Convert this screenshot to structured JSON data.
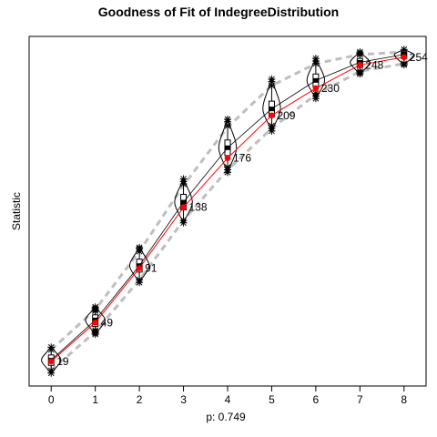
{
  "chart_data": {
    "type": "line",
    "title": "Goodness of Fit of IndegreeDistribution",
    "xlabel": "p: 0.749",
    "ylabel": "Statistic",
    "x": [
      0,
      1,
      2,
      3,
      4,
      5,
      6,
      7,
      8
    ],
    "xlim": [
      -0.5,
      8.5
    ],
    "ylim": [
      0,
      270
    ],
    "grid": false,
    "y_ticks_shown": false,
    "series": [
      {
        "role": "observed",
        "color": "#ff0000",
        "values": [
          19,
          49,
          91,
          138,
          176,
          209,
          230,
          248,
          254
        ],
        "labels": [
          "19",
          "49",
          "91",
          "138",
          "176",
          "209",
          "230",
          "248",
          "254"
        ]
      },
      {
        "role": "simulated-mean",
        "color": "#000000",
        "values": [
          20,
          51,
          93,
          142,
          184,
          214,
          236,
          250,
          256
        ]
      },
      {
        "role": "simulated-upper",
        "color": "#bebebe",
        "values": [
          28,
          59,
          104,
          155,
          200,
          232,
          249,
          256,
          258
        ]
      },
      {
        "role": "simulated-lower",
        "color": "#bebebe",
        "values": [
          12,
          42,
          82,
          128,
          167,
          199,
          225,
          243,
          249
        ]
      }
    ],
    "violins": [
      {
        "x": 0,
        "min": 10,
        "max": 30,
        "q1": 16,
        "median": 20,
        "q3": 24,
        "halfwidth": 0.22
      },
      {
        "x": 1,
        "min": 40,
        "max": 61,
        "q1": 46,
        "median": 51,
        "q3": 55,
        "halfwidth": 0.22
      },
      {
        "x": 2,
        "min": 80,
        "max": 107,
        "q1": 88,
        "median": 93,
        "q3": 98,
        "halfwidth": 0.22
      },
      {
        "x": 3,
        "min": 126,
        "max": 160,
        "q1": 136,
        "median": 142,
        "q3": 148,
        "halfwidth": 0.2
      },
      {
        "x": 4,
        "min": 165,
        "max": 206,
        "q1": 178,
        "median": 184,
        "q3": 190,
        "halfwidth": 0.2
      },
      {
        "x": 5,
        "min": 197,
        "max": 237,
        "q1": 208,
        "median": 214,
        "q3": 220,
        "halfwidth": 0.2
      },
      {
        "x": 6,
        "min": 222,
        "max": 253,
        "q1": 231,
        "median": 236,
        "q3": 241,
        "halfwidth": 0.2
      },
      {
        "x": 7,
        "min": 241,
        "max": 258,
        "q1": 246,
        "median": 250,
        "q3": 253,
        "halfwidth": 0.22
      },
      {
        "x": 8,
        "min": 248,
        "max": 260,
        "q1": 253,
        "median": 256,
        "q3": 258,
        "halfwidth": 0.22
      }
    ],
    "outliers": [
      {
        "x": 0,
        "values": [
          10,
          12,
          28,
          30
        ]
      },
      {
        "x": 1,
        "values": [
          40,
          41,
          42,
          43,
          58,
          59,
          60,
          61
        ]
      },
      {
        "x": 2,
        "values": [
          80,
          82,
          104,
          106,
          107
        ]
      },
      {
        "x": 3,
        "values": [
          126,
          128,
          156,
          158,
          160
        ]
      },
      {
        "x": 4,
        "values": [
          165,
          167,
          169,
          201,
          204,
          206
        ]
      },
      {
        "x": 5,
        "values": [
          197,
          199,
          201,
          232,
          235,
          237
        ]
      },
      {
        "x": 6,
        "values": [
          222,
          224,
          226,
          249,
          251,
          253
        ]
      },
      {
        "x": 7,
        "values": [
          241,
          242,
          243,
          256,
          257,
          258
        ]
      },
      {
        "x": 8,
        "values": [
          248,
          249,
          260
        ]
      }
    ]
  }
}
